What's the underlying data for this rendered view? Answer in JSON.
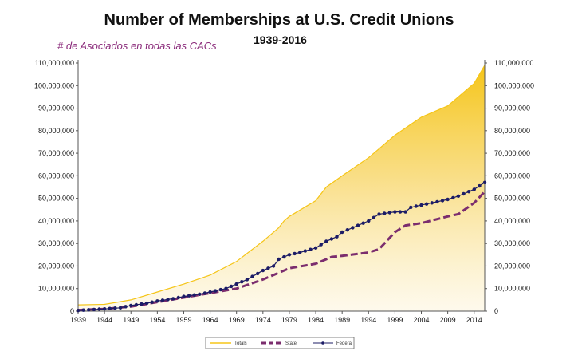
{
  "chart_data": {
    "type": "area",
    "title": "Number of Memberships at U.S. Credit Unions",
    "subtitle": "1939-2016",
    "annotation": "# de Asociados en todas las CACs",
    "ylim": [
      0,
      110000000
    ],
    "xlim": [
      1939,
      2016
    ],
    "y_ticks": [
      0,
      10000000,
      20000000,
      30000000,
      40000000,
      50000000,
      60000000,
      70000000,
      80000000,
      90000000,
      100000000,
      110000000
    ],
    "y_tick_labels_left": [
      "0",
      "10,000,000",
      "20,000,000",
      "30,000,000",
      "40,000,000",
      "50,000,000",
      "60,000,000",
      "70,000,000",
      "80,000,000",
      "90,000,000",
      "100,000,000",
      "110,000,000"
    ],
    "y_tick_labels_right": [
      "0",
      "10,000,000",
      "20,000,000",
      "30,000,000",
      "40,000,000",
      "50,000,000",
      "60,000,000",
      "70,000,000",
      "80,000,000",
      "90,000,000",
      "100,000,000",
      "110,000,000"
    ],
    "x_ticks": [
      1939,
      1944,
      1949,
      1954,
      1959,
      1964,
      1969,
      1974,
      1979,
      1984,
      1989,
      1994,
      1999,
      2004,
      2009,
      2014
    ],
    "x_tick_labels": [
      "1939",
      "1944",
      "1949",
      "1954",
      "1959",
      "1964",
      "1969",
      "1974",
      "1979",
      "1984",
      "1989",
      "1994",
      "1999",
      "2004",
      "2009",
      "2014"
    ],
    "grid": false,
    "legend_position": "bottom",
    "series": [
      {
        "name": "Totals",
        "style": "area",
        "color": "#f5c518",
        "x": [
          1939,
          1944,
          1949,
          1954,
          1959,
          1964,
          1969,
          1974,
          1977,
          1978,
          1979,
          1984,
          1986,
          1989,
          1994,
          1999,
          2004,
          2009,
          2010,
          2014,
          2016
        ],
        "values": [
          2800000,
          3000000,
          5000000,
          8500000,
          12000000,
          16000000,
          22000000,
          31000000,
          37000000,
          40000000,
          42000000,
          49000000,
          55000000,
          60000000,
          68000000,
          78000000,
          86000000,
          91000000,
          93000000,
          101000000,
          109000000
        ]
      },
      {
        "name": "State",
        "style": "dashed",
        "color": "#7b2d6e",
        "x": [
          1939,
          1944,
          1949,
          1954,
          1959,
          1964,
          1969,
          1974,
          1979,
          1984,
          1987,
          1989,
          1994,
          1996,
          1999,
          2001,
          2004,
          2009,
          2011,
          2014,
          2016
        ],
        "values": [
          500000,
          1000000,
          2000000,
          4000000,
          6000000,
          8000000,
          10000000,
          14000000,
          19000000,
          21000000,
          24000000,
          24500000,
          26000000,
          27500000,
          35000000,
          38000000,
          39000000,
          42000000,
          43000000,
          48000000,
          53000000
        ]
      },
      {
        "name": "Federal",
        "style": "dotted-markers",
        "color": "#1c1c66",
        "x": [
          1939,
          1941,
          1944,
          1947,
          1949,
          1952,
          1954,
          1957,
          1959,
          1962,
          1964,
          1967,
          1969,
          1971,
          1974,
          1976,
          1977,
          1978,
          1979,
          1981,
          1984,
          1986,
          1988,
          1989,
          1991,
          1994,
          1996,
          1999,
          2001,
          2002,
          2004,
          2006,
          2009,
          2011,
          2014,
          2016
        ],
        "values": [
          300000,
          600000,
          1000000,
          1500000,
          2500000,
          3500000,
          4500000,
          5500000,
          6500000,
          7500000,
          8500000,
          10000000,
          12000000,
          14000000,
          18000000,
          20000000,
          23000000,
          24000000,
          25000000,
          26000000,
          28000000,
          31000000,
          33000000,
          35000000,
          37000000,
          40000000,
          43000000,
          44000000,
          44000000,
          46000000,
          47000000,
          48000000,
          49500000,
          51000000,
          54000000,
          57000000
        ]
      }
    ],
    "legend": [
      {
        "label": "Totals",
        "color": "#f5c518",
        "style": "area"
      },
      {
        "label": "State",
        "color": "#7b2d6e",
        "style": "dashed"
      },
      {
        "label": "Federal",
        "color": "#1c1c66",
        "style": "dotted-markers"
      }
    ]
  }
}
